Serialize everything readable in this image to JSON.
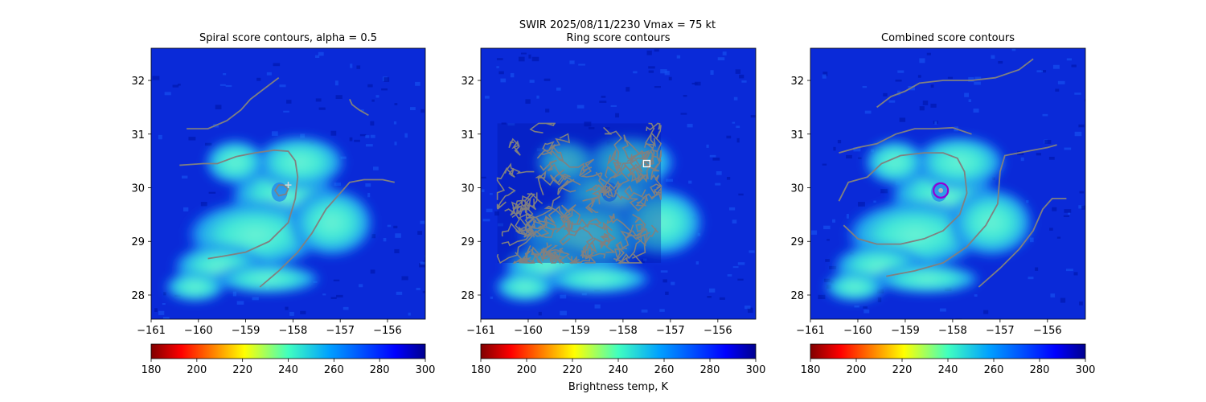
{
  "figure": {
    "suptitle_line1": "SWIR  2025/08/11/2230    Vmax = 75 kt",
    "colorbar_label": "Brightness temp, K"
  },
  "chart_data": [
    {
      "type": "heatmap",
      "title": "Spiral score contours, alpha =  0.5",
      "xlim": [
        -161,
        -155.2
      ],
      "ylim": [
        27.55,
        32.6
      ],
      "xticks": [
        -161,
        -160,
        -159,
        -158,
        -157,
        -156
      ],
      "xtick_labels": [
        "−161",
        "−160",
        "−159",
        "−158",
        "−157",
        "−156"
      ],
      "yticks": [
        28,
        29,
        30,
        31,
        32
      ],
      "ytick_labels": [
        "28",
        "29",
        "30",
        "31",
        "32"
      ],
      "colormap": "jet_r",
      "clim": [
        180,
        300
      ],
      "colorbar_ticks": [
        "180",
        "200",
        "220",
        "240",
        "260",
        "280",
        "300"
      ],
      "storm_center": {
        "lon": -158.2,
        "lat": 29.95
      },
      "marker": {
        "lon": -158.1,
        "lat": 30.05,
        "kind": "plus",
        "color": "#d8d8d8"
      },
      "contour_color": "#808080",
      "contours": [
        [
          [
            -160.25,
            31.1
          ],
          [
            -159.8,
            31.1
          ],
          [
            -159.4,
            31.25
          ],
          [
            -159.1,
            31.45
          ],
          [
            -158.9,
            31.65
          ],
          [
            -158.6,
            31.85
          ],
          [
            -158.3,
            32.05
          ]
        ],
        [
          [
            -156.8,
            31.65
          ],
          [
            -156.75,
            31.55
          ],
          [
            -156.6,
            31.45
          ],
          [
            -156.4,
            31.35
          ]
        ],
        [
          [
            -160.4,
            30.42
          ],
          [
            -159.9,
            30.45
          ],
          [
            -159.6,
            30.45
          ],
          [
            -159.2,
            30.58
          ],
          [
            -158.8,
            30.65
          ],
          [
            -158.4,
            30.7
          ],
          [
            -158.1,
            30.68
          ],
          [
            -157.95,
            30.5
          ],
          [
            -157.9,
            30.2
          ],
          [
            -157.95,
            29.8
          ],
          [
            -158.1,
            29.35
          ],
          [
            -158.5,
            29.0
          ],
          [
            -159.0,
            28.8
          ],
          [
            -159.5,
            28.72
          ],
          [
            -159.8,
            28.68
          ]
        ],
        [
          [
            -158.7,
            28.15
          ],
          [
            -158.3,
            28.45
          ],
          [
            -157.9,
            28.8
          ],
          [
            -157.6,
            29.15
          ],
          [
            -157.3,
            29.6
          ],
          [
            -157.0,
            29.9
          ],
          [
            -156.8,
            30.1
          ],
          [
            -156.5,
            30.15
          ],
          [
            -156.1,
            30.15
          ],
          [
            -155.85,
            30.1
          ]
        ],
        [
          [
            -158.2,
            30.05
          ],
          [
            -158.1,
            29.98
          ],
          [
            -158.15,
            29.88
          ],
          [
            -158.3,
            29.85
          ],
          [
            -158.38,
            29.95
          ],
          [
            -158.3,
            30.05
          ],
          [
            -158.2,
            30.05
          ]
        ]
      ]
    },
    {
      "type": "heatmap",
      "title": "Ring score contours",
      "xlim": [
        -161,
        -155.2
      ],
      "ylim": [
        27.55,
        32.6
      ],
      "xticks": [
        -161,
        -160,
        -159,
        -158,
        -157,
        -156
      ],
      "xtick_labels": [
        "−161",
        "−160",
        "−159",
        "−158",
        "−157",
        "−156"
      ],
      "yticks": [
        28,
        29,
        30,
        31,
        32
      ],
      "ytick_labels": [
        "28",
        "29",
        "30",
        "31",
        "32"
      ],
      "colormap": "jet_r",
      "clim": [
        180,
        300
      ],
      "colorbar_ticks": [
        "180",
        "200",
        "220",
        "240",
        "260",
        "280",
        "300"
      ],
      "storm_center": {
        "lon": -158.2,
        "lat": 29.95
      },
      "marker": {
        "lon": -157.5,
        "lat": 30.45,
        "kind": "square",
        "color": "#ffffff"
      },
      "contour_color": "#808080",
      "ring_region": {
        "lon_min": -160.65,
        "lon_max": -157.2,
        "lat_min": 28.6,
        "lat_max": 31.2
      },
      "contours": []
    },
    {
      "type": "heatmap",
      "title": "Combined score contours",
      "xlim": [
        -161,
        -155.2
      ],
      "ylim": [
        27.55,
        32.6
      ],
      "xticks": [
        -161,
        -160,
        -159,
        -158,
        -157,
        -156
      ],
      "xtick_labels": [
        "−161",
        "−160",
        "−159",
        "−158",
        "−157",
        "−156"
      ],
      "yticks": [
        28,
        29,
        30,
        31,
        32
      ],
      "ytick_labels": [
        "28",
        "29",
        "30",
        "31",
        "32"
      ],
      "colormap": "jet_r",
      "clim": [
        180,
        300
      ],
      "colorbar_ticks": [
        "180",
        "200",
        "220",
        "240",
        "260",
        "280",
        "300"
      ],
      "storm_center": {
        "lon": -158.2,
        "lat": 29.95
      },
      "marker": {
        "lon": -158.25,
        "lat": 29.95,
        "kind": "circle",
        "color": "#9400d3"
      },
      "contour_color": "#808080",
      "contours": [
        [
          [
            -159.6,
            31.5
          ],
          [
            -159.3,
            31.7
          ],
          [
            -159.0,
            31.8
          ],
          [
            -158.7,
            31.95
          ],
          [
            -158.2,
            32.0
          ],
          [
            -157.6,
            32.0
          ],
          [
            -157.1,
            32.05
          ],
          [
            -156.6,
            32.2
          ],
          [
            -156.3,
            32.4
          ]
        ],
        [
          [
            -160.4,
            30.65
          ],
          [
            -160.0,
            30.75
          ],
          [
            -159.6,
            30.82
          ],
          [
            -159.2,
            31.0
          ],
          [
            -158.8,
            31.1
          ],
          [
            -158.4,
            31.1
          ],
          [
            -158.0,
            31.12
          ],
          [
            -157.6,
            31.0
          ]
        ],
        [
          [
            -160.4,
            29.75
          ],
          [
            -160.2,
            30.1
          ],
          [
            -160.0,
            30.15
          ],
          [
            -159.8,
            30.2
          ],
          [
            -159.5,
            30.45
          ],
          [
            -159.1,
            30.6
          ],
          [
            -158.6,
            30.65
          ],
          [
            -158.2,
            30.65
          ],
          [
            -157.9,
            30.55
          ],
          [
            -157.75,
            30.3
          ],
          [
            -157.7,
            29.9
          ],
          [
            -157.85,
            29.5
          ],
          [
            -158.2,
            29.2
          ],
          [
            -158.6,
            29.05
          ],
          [
            -159.1,
            28.95
          ],
          [
            -159.6,
            28.95
          ],
          [
            -160.0,
            29.05
          ],
          [
            -160.3,
            29.3
          ]
        ],
        [
          [
            -159.4,
            28.35
          ],
          [
            -158.8,
            28.45
          ],
          [
            -158.2,
            28.6
          ],
          [
            -157.7,
            28.9
          ],
          [
            -157.3,
            29.3
          ],
          [
            -157.05,
            29.7
          ],
          [
            -157.0,
            30.3
          ],
          [
            -156.9,
            30.6
          ],
          [
            -156.6,
            30.65
          ],
          [
            -156.3,
            30.7
          ],
          [
            -156.0,
            30.75
          ],
          [
            -155.8,
            30.8
          ]
        ],
        [
          [
            -157.45,
            28.15
          ],
          [
            -157.0,
            28.5
          ],
          [
            -156.6,
            28.85
          ],
          [
            -156.3,
            29.2
          ],
          [
            -156.1,
            29.6
          ],
          [
            -155.9,
            29.8
          ],
          [
            -155.6,
            29.8
          ]
        ]
      ]
    }
  ]
}
